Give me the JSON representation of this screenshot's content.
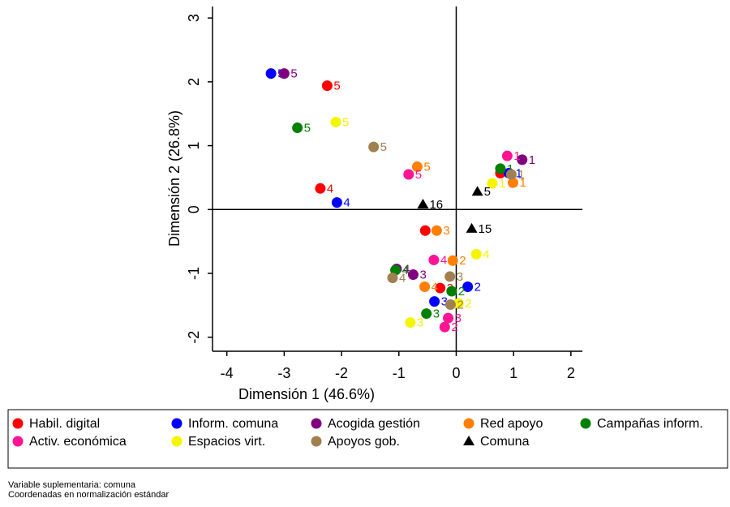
{
  "chart_data": {
    "type": "scatter",
    "xlabel": "Dimensión 1 (46.6%)",
    "ylabel": "Dimensión 2 (26.8%)",
    "xlim": [
      -4.25,
      2.2
    ],
    "ylim": [
      -2.22,
      3.18
    ],
    "xticks": [
      -4,
      -3,
      -2,
      -1,
      0,
      1,
      2
    ],
    "yticks": [
      -2,
      -1,
      0,
      1,
      2,
      3
    ],
    "xline": 0,
    "yline": 0,
    "series": [
      {
        "name": "Habil. digital",
        "color": "#ff0000",
        "marker": "circle",
        "x": [
          -2.25,
          -2.37,
          -0.54,
          -0.28,
          0.77
        ],
        "y": [
          1.94,
          0.33,
          -0.33,
          -1.23,
          0.57
        ],
        "labels": [
          "5",
          "4",
          "3",
          "2",
          "1"
        ]
      },
      {
        "name": "Inform. comuna",
        "color": "#0000ff",
        "marker": "circle",
        "x": [
          -3.23,
          -2.08,
          0.2,
          -0.38,
          0.92
        ],
        "y": [
          2.13,
          0.11,
          -1.21,
          -1.44,
          0.57
        ],
        "labels": [
          "5",
          "4",
          "2",
          "3",
          "1"
        ]
      },
      {
        "name": "Acogida gestión",
        "color": "#800080",
        "marker": "circle",
        "x": [
          -3.0,
          1.15,
          -1.04,
          -0.75
        ],
        "y": [
          2.13,
          0.78,
          -0.93,
          -1.02
        ],
        "labels": [
          "5",
          "1",
          "4",
          "3"
        ]
      },
      {
        "name": "Red apoyo",
        "color": "#ff7f00",
        "marker": "circle",
        "x": [
          -0.68,
          0.99,
          -0.34,
          -0.06,
          -0.55
        ],
        "y": [
          0.67,
          0.42,
          -0.33,
          -0.8,
          -1.21
        ],
        "labels": [
          "5",
          "1",
          "3",
          "2",
          "4"
        ]
      },
      {
        "name": "Campañas inform.",
        "color": "#008000",
        "marker": "circle",
        "x": [
          -2.77,
          0.77,
          -1.06,
          -0.08,
          -0.52
        ],
        "y": [
          1.28,
          0.64,
          -0.95,
          -1.28,
          -1.63
        ],
        "labels": [
          "5",
          "1",
          "4",
          "2",
          "3"
        ]
      },
      {
        "name": "Activ. económica",
        "color": "#ff1493",
        "marker": "circle",
        "x": [
          -0.83,
          0.89,
          -0.39,
          -0.14,
          -0.2
        ],
        "y": [
          0.55,
          0.84,
          -0.79,
          -1.7,
          -1.84
        ],
        "labels": [
          "5",
          "1",
          "4",
          "3",
          "2"
        ]
      },
      {
        "name": "Espacios virt.",
        "color": "#f5f500",
        "marker": "circle",
        "x": [
          -2.1,
          0.63,
          0.35,
          0.04,
          -0.8
        ],
        "y": [
          1.37,
          0.41,
          -0.7,
          -1.47,
          -1.77
        ],
        "labels": [
          "5",
          "1",
          "4",
          "2",
          "3"
        ]
      },
      {
        "name": "Apoyos gob.",
        "color": "#a08050",
        "marker": "circle",
        "x": [
          -1.44,
          0.96,
          -1.11,
          -0.11,
          -0.1
        ],
        "y": [
          0.98,
          0.55,
          -1.07,
          -1.05,
          -1.49
        ],
        "labels": [
          "5",
          "1",
          "4",
          "3",
          "2"
        ]
      },
      {
        "name": "Comuna",
        "color": "#000000",
        "marker": "triangle",
        "x": [
          0.37,
          -0.58,
          0.27
        ],
        "y": [
          0.28,
          0.08,
          -0.3
        ],
        "labels": [
          "5",
          "16",
          "15"
        ]
      }
    ],
    "notes": [
      "Variable suplementaria: comuna",
      "Coordenadas en normalización estándar"
    ]
  }
}
